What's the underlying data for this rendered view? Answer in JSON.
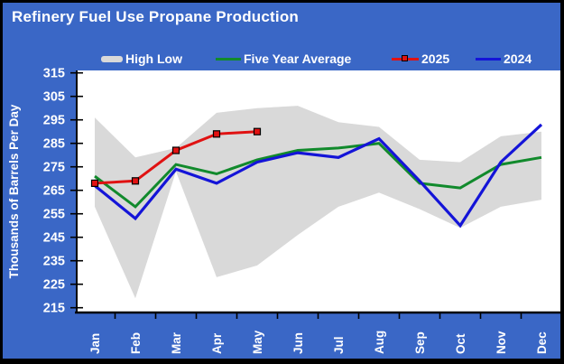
{
  "header": {
    "title": "Refinery Fuel Use Propane Production"
  },
  "colors": {
    "background": "#3A67C6",
    "plot_background": "#FFFFFF",
    "axis": "#000000",
    "label_text": "#FFFFFF",
    "band": "#D9D9D9",
    "five_year_average": "#118A2C",
    "series_2025": "#E01212",
    "series_2024": "#1414D8"
  },
  "legend": [
    {
      "label": "High Low",
      "type": "band",
      "color": "#D9D9D9"
    },
    {
      "label": "Five Year Average",
      "type": "line",
      "color": "#118A2C"
    },
    {
      "label": "2025",
      "type": "line-marker",
      "color": "#E01212"
    },
    {
      "label": "2024",
      "type": "line",
      "color": "#1414D8"
    }
  ],
  "chart_data": {
    "type": "line",
    "title": "Refinery Fuel Use Propane Production",
    "xlabel": "",
    "ylabel": "Thousands of Barrels Per Day",
    "categories": [
      "Jan",
      "Feb",
      "Mar",
      "Apr",
      "May",
      "Jun",
      "Jul",
      "Aug",
      "Sep",
      "Oct",
      "Nov",
      "Dec"
    ],
    "yticks": [
      315,
      305,
      295,
      285,
      275,
      265,
      255,
      245,
      235,
      225,
      215
    ],
    "ylim": [
      215,
      315
    ],
    "grid": false,
    "legend_position": "top",
    "series": [
      {
        "name": "High Low",
        "type": "band",
        "color": "#D9D9D9",
        "high": [
          296,
          279,
          283,
          298,
          300,
          301,
          294,
          292,
          278,
          277,
          288,
          290
        ],
        "low": [
          258,
          219,
          273,
          228,
          233,
          246,
          258,
          264,
          257,
          249,
          258,
          261
        ]
      },
      {
        "name": "Five Year Average",
        "type": "line",
        "color": "#118A2C",
        "values": [
          271,
          258,
          276,
          272,
          278,
          282,
          283,
          285,
          268,
          266,
          276,
          279
        ]
      },
      {
        "name": "2025",
        "type": "line",
        "color": "#E01212",
        "marker": "square",
        "marker_color": "#E31212",
        "values": [
          268,
          269,
          282,
          289,
          290,
          null,
          null,
          null,
          null,
          null,
          null,
          null
        ]
      },
      {
        "name": "2024",
        "type": "line",
        "color": "#1414D8",
        "values": [
          267,
          253,
          274,
          268,
          277,
          281,
          279,
          287,
          269,
          250,
          277,
          293
        ]
      }
    ]
  }
}
